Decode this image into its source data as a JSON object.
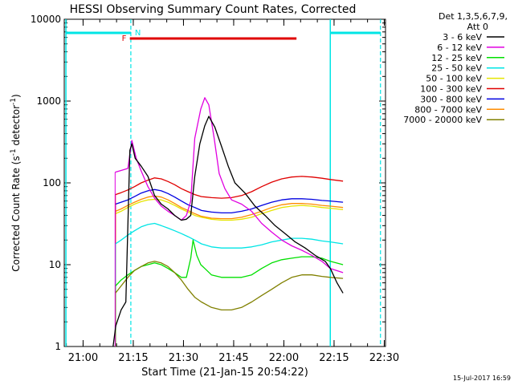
{
  "chart_data": {
    "type": "line",
    "title": "HESSI Observing Summary Count Rates, Corrected",
    "xlabel": "Start Time (21-Jan-15 20:54:22)",
    "ylabel_main": "Corrected Count Rate (s",
    "ylabel_sup1": "-1",
    "ylabel_mid": " detector",
    "ylabel_sup2": "-1",
    "ylabel_end": ")",
    "y_scale": "log",
    "ylim": [
      1,
      10000
    ],
    "xlim_minutes": [
      0,
      96
    ],
    "x_ticks": [
      {
        "label": "21:00",
        "min": 5.63
      },
      {
        "label": "21:15",
        "min": 20.63
      },
      {
        "label": "21:30",
        "min": 35.63
      },
      {
        "label": "21:45",
        "min": 50.63
      },
      {
        "label": "22:00",
        "min": 65.63
      },
      {
        "label": "22:15",
        "min": 80.63
      },
      {
        "label": "22:30",
        "min": 95.63
      }
    ],
    "y_ticks": [
      {
        "label": "1",
        "value": 1
      },
      {
        "label": "10",
        "value": 10
      },
      {
        "label": "100",
        "value": 100
      },
      {
        "label": "1000",
        "value": 1000
      },
      {
        "label": "10000",
        "value": 10000
      }
    ],
    "legend_header": [
      "Det 1,3,5,6,7,9,",
      "Att 0"
    ],
    "legend_position": "right",
    "markers": {
      "flag_N": "N",
      "flag_F": "F",
      "night_color": "#00e5e5",
      "flare_color": "#e00000",
      "night_segments": [
        [
          0.5,
          19.9
        ],
        [
          79.5,
          94.5
        ]
      ],
      "flare_segment": [
        19.6,
        69.4
      ],
      "vlines_solid": [
        0.5,
        79.5
      ],
      "vlines_dashed": [
        19.9,
        94.5
      ]
    },
    "series": [
      {
        "name": "3 - 6 keV",
        "color": "#000000",
        "points": [
          [
            14.6,
            1
          ],
          [
            15.4,
            1.8
          ],
          [
            17,
            2.8
          ],
          [
            18.4,
            3.5
          ],
          [
            19.6,
            250
          ],
          [
            20.2,
            300
          ],
          [
            21.2,
            200
          ],
          [
            23,
            160
          ],
          [
            25,
            120
          ],
          [
            27,
            70
          ],
          [
            29,
            55
          ],
          [
            31,
            48
          ],
          [
            33,
            40
          ],
          [
            35,
            35
          ],
          [
            36.5,
            36
          ],
          [
            37.8,
            40
          ],
          [
            39,
            120
          ],
          [
            40.5,
            300
          ],
          [
            42,
            500
          ],
          [
            43.2,
            650
          ],
          [
            45,
            480
          ],
          [
            47,
            280
          ],
          [
            49,
            160
          ],
          [
            51,
            100
          ],
          [
            54,
            75
          ],
          [
            57,
            52
          ],
          [
            60,
            40
          ],
          [
            63,
            30
          ],
          [
            66,
            24
          ],
          [
            69,
            19
          ],
          [
            72,
            16
          ],
          [
            75,
            13
          ],
          [
            78,
            11
          ],
          [
            79.5,
            9
          ],
          [
            81.5,
            6
          ],
          [
            83.3,
            4.5
          ]
        ]
      },
      {
        "name": "6 - 12 keV",
        "color": "#e000e0",
        "points": [
          [
            15.2,
            135
          ],
          [
            19,
            150
          ],
          [
            20.2,
            330
          ],
          [
            21.5,
            200
          ],
          [
            23,
            140
          ],
          [
            25,
            90
          ],
          [
            27,
            65
          ],
          [
            29,
            52
          ],
          [
            31,
            45
          ],
          [
            33,
            40
          ],
          [
            35,
            35
          ],
          [
            36.5,
            40
          ],
          [
            37.8,
            60
          ],
          [
            39,
            350
          ],
          [
            40.8,
            800
          ],
          [
            42,
            1100
          ],
          [
            43.2,
            900
          ],
          [
            44.8,
            350
          ],
          [
            46.3,
            130
          ],
          [
            48,
            85
          ],
          [
            50,
            62
          ],
          [
            53,
            55
          ],
          [
            56,
            45
          ],
          [
            59,
            32
          ],
          [
            62,
            25
          ],
          [
            65,
            20
          ],
          [
            68,
            17
          ],
          [
            71,
            15
          ],
          [
            74,
            13
          ],
          [
            77,
            11
          ],
          [
            79.5,
            9
          ],
          [
            83.3,
            8
          ]
        ]
      },
      {
        "name": "12 - 25 keV",
        "color": "#00e000",
        "points": [
          [
            15.3,
            5.5
          ],
          [
            17,
            6.5
          ],
          [
            19,
            7.5
          ],
          [
            21,
            8.5
          ],
          [
            23,
            9.5
          ],
          [
            25,
            10
          ],
          [
            27,
            10.5
          ],
          [
            29,
            10
          ],
          [
            31,
            9
          ],
          [
            33,
            8
          ],
          [
            35,
            7
          ],
          [
            36.5,
            7
          ],
          [
            37.8,
            12
          ],
          [
            38.5,
            20
          ],
          [
            39.6,
            13
          ],
          [
            40.8,
            10
          ],
          [
            42,
            9
          ],
          [
            44,
            7.5
          ],
          [
            47,
            7
          ],
          [
            50,
            7
          ],
          [
            53,
            7
          ],
          [
            56,
            7.5
          ],
          [
            59,
            9
          ],
          [
            62,
            10.5
          ],
          [
            65,
            11.5
          ],
          [
            68,
            12
          ],
          [
            71,
            12.5
          ],
          [
            74,
            12.5
          ],
          [
            77,
            12
          ],
          [
            79.5,
            11
          ],
          [
            83.3,
            10
          ]
        ]
      },
      {
        "name": "25 - 50 keV",
        "color": "#00e5e5",
        "points": [
          [
            15.3,
            18
          ],
          [
            17,
            20
          ],
          [
            19,
            23
          ],
          [
            21,
            26
          ],
          [
            23,
            29
          ],
          [
            25,
            31
          ],
          [
            27,
            32
          ],
          [
            29,
            30
          ],
          [
            31,
            28
          ],
          [
            33,
            26
          ],
          [
            35,
            24
          ],
          [
            37,
            22
          ],
          [
            39,
            20
          ],
          [
            41,
            18
          ],
          [
            44,
            16.5
          ],
          [
            47,
            16
          ],
          [
            50,
            16
          ],
          [
            53,
            16
          ],
          [
            56,
            16.5
          ],
          [
            59,
            17.5
          ],
          [
            62,
            19
          ],
          [
            65,
            20
          ],
          [
            68,
            21
          ],
          [
            71,
            21
          ],
          [
            74,
            20.5
          ],
          [
            77,
            19.5
          ],
          [
            79.5,
            19
          ],
          [
            83.3,
            18
          ]
        ]
      },
      {
        "name": "50 - 100 keV",
        "color": "#e5e500",
        "points": [
          [
            15.3,
            42
          ],
          [
            17,
            45
          ],
          [
            19,
            50
          ],
          [
            21,
            55
          ],
          [
            23,
            59
          ],
          [
            25,
            62
          ],
          [
            27,
            63
          ],
          [
            29,
            62
          ],
          [
            31,
            58
          ],
          [
            33,
            53
          ],
          [
            35,
            48
          ],
          [
            37,
            44
          ],
          [
            39,
            40
          ],
          [
            41,
            38
          ],
          [
            44,
            36
          ],
          [
            47,
            35
          ],
          [
            50,
            35
          ],
          [
            53,
            36
          ],
          [
            56,
            38
          ],
          [
            59,
            42
          ],
          [
            62,
            46
          ],
          [
            65,
            50
          ],
          [
            68,
            52
          ],
          [
            71,
            53
          ],
          [
            74,
            52
          ],
          [
            77,
            50
          ],
          [
            79.5,
            49
          ],
          [
            83.3,
            47
          ]
        ]
      },
      {
        "name": "100 - 300 keV",
        "color": "#e00000",
        "points": [
          [
            15.3,
            72
          ],
          [
            17,
            76
          ],
          [
            19,
            82
          ],
          [
            21,
            90
          ],
          [
            23,
            100
          ],
          [
            25,
            108
          ],
          [
            27,
            115
          ],
          [
            29,
            112
          ],
          [
            31,
            104
          ],
          [
            33,
            95
          ],
          [
            35,
            85
          ],
          [
            37,
            78
          ],
          [
            39,
            72
          ],
          [
            41,
            68
          ],
          [
            44,
            66
          ],
          [
            47,
            65
          ],
          [
            50,
            66
          ],
          [
            53,
            70
          ],
          [
            56,
            78
          ],
          [
            59,
            90
          ],
          [
            62,
            102
          ],
          [
            65,
            112
          ],
          [
            68,
            118
          ],
          [
            71,
            120
          ],
          [
            74,
            118
          ],
          [
            77,
            114
          ],
          [
            79.5,
            110
          ],
          [
            83.3,
            105
          ]
        ]
      },
      {
        "name": "300 - 800 keV",
        "color": "#0000e0",
        "points": [
          [
            15.3,
            55
          ],
          [
            17,
            58
          ],
          [
            19,
            62
          ],
          [
            21,
            68
          ],
          [
            23,
            75
          ],
          [
            25,
            80
          ],
          [
            27,
            83
          ],
          [
            29,
            80
          ],
          [
            31,
            74
          ],
          [
            33,
            67
          ],
          [
            35,
            60
          ],
          [
            37,
            54
          ],
          [
            39,
            50
          ],
          [
            41,
            46
          ],
          [
            44,
            44
          ],
          [
            47,
            43
          ],
          [
            50,
            43
          ],
          [
            53,
            45
          ],
          [
            56,
            48
          ],
          [
            59,
            53
          ],
          [
            62,
            58
          ],
          [
            65,
            62
          ],
          [
            68,
            64
          ],
          [
            71,
            64
          ],
          [
            74,
            63
          ],
          [
            77,
            61
          ],
          [
            79.5,
            60
          ],
          [
            83.3,
            58
          ]
        ]
      },
      {
        "name": "800 - 7000 keV",
        "color": "#ff8c00",
        "points": [
          [
            15.3,
            45
          ],
          [
            17,
            48
          ],
          [
            19,
            53
          ],
          [
            21,
            58
          ],
          [
            23,
            63
          ],
          [
            25,
            67
          ],
          [
            27,
            69
          ],
          [
            29,
            67
          ],
          [
            31,
            62
          ],
          [
            33,
            56
          ],
          [
            35,
            50
          ],
          [
            37,
            46
          ],
          [
            39,
            42
          ],
          [
            41,
            39
          ],
          [
            44,
            37
          ],
          [
            47,
            36.5
          ],
          [
            50,
            36.5
          ],
          [
            53,
            38
          ],
          [
            56,
            41
          ],
          [
            59,
            45
          ],
          [
            62,
            50
          ],
          [
            65,
            54
          ],
          [
            68,
            56
          ],
          [
            71,
            56
          ],
          [
            74,
            55
          ],
          [
            77,
            53
          ],
          [
            79.5,
            52
          ],
          [
            83.3,
            50
          ]
        ]
      },
      {
        "name": "7000 - 20000 keV",
        "color": "#808000",
        "points": [
          [
            15.3,
            4.5
          ],
          [
            17,
            5.5
          ],
          [
            19,
            7
          ],
          [
            21,
            8.5
          ],
          [
            23,
            9.5
          ],
          [
            25,
            10.5
          ],
          [
            27,
            11
          ],
          [
            29,
            10.5
          ],
          [
            31,
            9.5
          ],
          [
            33,
            8
          ],
          [
            35,
            6.5
          ],
          [
            37,
            5
          ],
          [
            39,
            4
          ],
          [
            41,
            3.5
          ],
          [
            44,
            3
          ],
          [
            47,
            2.8
          ],
          [
            50,
            2.8
          ],
          [
            53,
            3
          ],
          [
            56,
            3.5
          ],
          [
            59,
            4.2
          ],
          [
            62,
            5
          ],
          [
            65,
            6
          ],
          [
            68,
            7
          ],
          [
            71,
            7.5
          ],
          [
            74,
            7.5
          ],
          [
            77,
            7.2
          ],
          [
            79.5,
            7
          ],
          [
            83.3,
            6.8
          ]
        ]
      }
    ]
  },
  "footer": {
    "timestamp": "15-Jul-2017 16:59"
  }
}
